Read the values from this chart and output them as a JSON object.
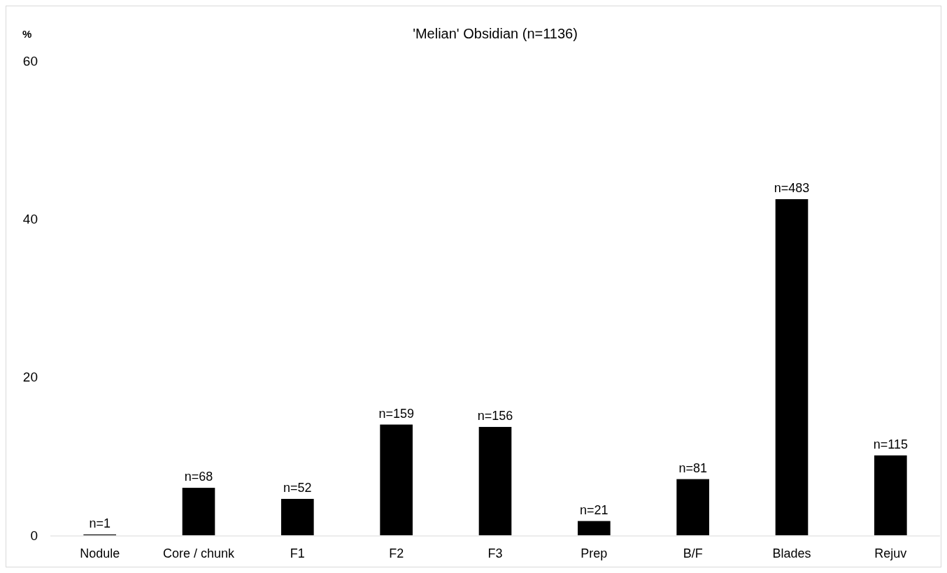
{
  "chart_data": {
    "type": "bar",
    "title": "'Melian' Obsidian (n=1136)",
    "ylabel": "%",
    "categories": [
      "Nodule",
      "Core / chunk",
      "F1",
      "F2",
      "F3",
      "Prep",
      "B/F",
      "Blades",
      "Rejuv"
    ],
    "values": [
      0.1,
      6.0,
      4.6,
      14.0,
      13.7,
      1.8,
      7.1,
      42.5,
      10.1
    ],
    "annotations": [
      {
        "text": "n=1",
        "x": "Nodule",
        "y": 0.1
      },
      {
        "text": "n=68",
        "x": "Core / chunk",
        "y": 6.0
      },
      {
        "text": "n=52",
        "x": "F1",
        "y": 4.6
      },
      {
        "text": "n=159",
        "x": "F2",
        "y": 14.0
      },
      {
        "text": "n=156",
        "x": "F3",
        "y": 13.7
      },
      {
        "text": "n=21",
        "x": "Prep",
        "y": 1.8
      },
      {
        "text": "n=81",
        "x": "B/F",
        "y": 7.1
      },
      {
        "text": "n=483",
        "x": "Blades",
        "y": 42.5
      },
      {
        "text": "n=115",
        "x": "Rejuv",
        "y": 10.1
      }
    ],
    "color": "#000000",
    "ylim": [
      0,
      60
    ],
    "yticks": [
      0,
      20,
      40,
      60
    ],
    "grid": false
  }
}
